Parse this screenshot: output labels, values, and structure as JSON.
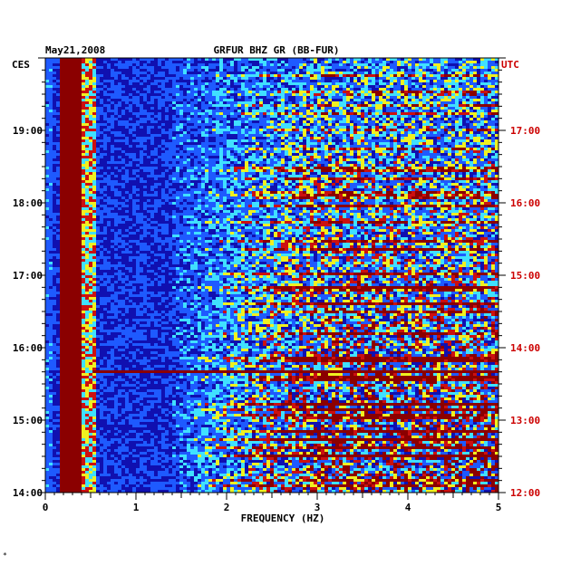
{
  "header": {
    "date": "May21,2008",
    "station": "GRFUR BHZ GR (BB-FUR)",
    "left_tz": "CES",
    "right_tz": "UTC",
    "corner_mark": "*"
  },
  "colors": {
    "low": "#1010b0",
    "mid_blue": "#1e5aff",
    "cyan": "#40e0ff",
    "yellow": "#f0f020",
    "red": "#cc1010",
    "maroon": "#8b0000",
    "utc_label": "#cc0000"
  },
  "chart_data": {
    "type": "heatmap",
    "title": "GRFUR BHZ GR (BB-FUR)",
    "xlabel": "FREQUENCY (HZ)",
    "ylabel": "",
    "xlim": [
      0,
      5
    ],
    "x_ticks": [
      0,
      1,
      2,
      3,
      4,
      5
    ],
    "x_tick_labels": [
      "0",
      "1",
      "2",
      "3",
      "4",
      "5"
    ],
    "y_range_hours": [
      14.0,
      20.0
    ],
    "y_ticks_left": [
      "14:00",
      "15:00",
      "16:00",
      "17:00",
      "18:00",
      "19:00"
    ],
    "y_ticks_right": [
      "12:00",
      "13:00",
      "14:00",
      "15:00",
      "16:00",
      "17:00"
    ],
    "y_tick_hours": [
      14,
      15,
      16,
      17,
      18,
      19
    ],
    "minor_tick_minutes": 10,
    "microseism_band_hz": [
      0.15,
      0.42
    ],
    "noise_onset_hz": 2.0,
    "event_hour_cest": 15.7,
    "scale": "blue (low) -> cyan -> yellow -> red -> maroon (high)"
  }
}
